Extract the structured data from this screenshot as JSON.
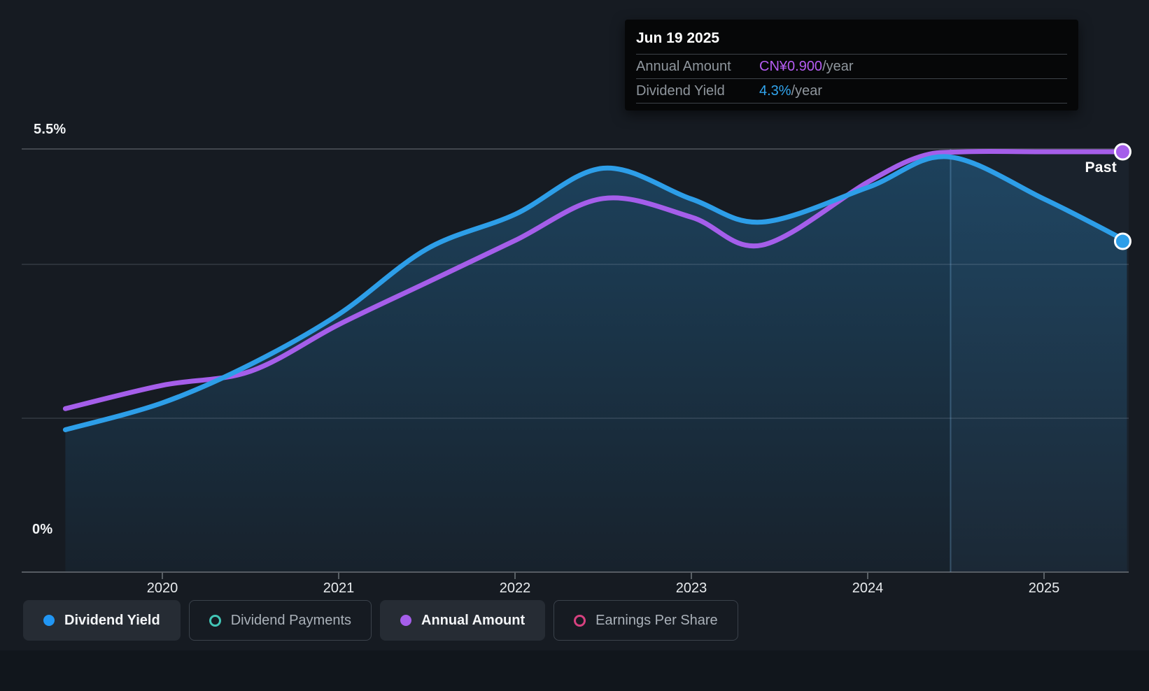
{
  "tooltip": {
    "date": "Jun 19 2025",
    "rows": [
      {
        "label": "Annual Amount",
        "value": "CN¥0.900",
        "suffix": "/year",
        "color": "#b55cf2"
      },
      {
        "label": "Dividend Yield",
        "value": "4.3%",
        "suffix": "/year",
        "color": "#31a5ee"
      }
    ]
  },
  "axes": {
    "y_top": "5.5%",
    "y_bottom": "0%",
    "x_ticks": [
      "2020",
      "2021",
      "2022",
      "2023",
      "2024",
      "2025"
    ]
  },
  "annotations": {
    "past": "Past"
  },
  "legend": [
    {
      "label": "Dividend Yield",
      "marker": "filled",
      "color": "#2196f3",
      "active": true
    },
    {
      "label": "Dividend Payments",
      "marker": "ring",
      "color": "#42c5b6",
      "active": false
    },
    {
      "label": "Annual Amount",
      "marker": "filled",
      "color": "#a55eea",
      "active": true
    },
    {
      "label": "Earnings Per Share",
      "marker": "ring",
      "color": "#d6417f",
      "active": false
    }
  ],
  "chart_data": {
    "type": "line",
    "x_range": [
      2019.45,
      2025.47
    ],
    "x_ticks": [
      2020,
      2021,
      2022,
      2023,
      2024,
      2025
    ],
    "ylim_percent": [
      0,
      5.5
    ],
    "gridline_percent_values": [
      5.5,
      4,
      2,
      0
    ],
    "divider_x": 2024.47,
    "legend_position": "bottom",
    "series": [
      {
        "name": "Dividend Yield",
        "unit": "%",
        "color": "#2d9ee8",
        "area": true,
        "end_label": "4.3%/year",
        "points": [
          [
            2019.45,
            1.85
          ],
          [
            2020,
            2.2
          ],
          [
            2020.5,
            2.7
          ],
          [
            2021,
            3.35
          ],
          [
            2021.5,
            4.2
          ],
          [
            2022,
            4.65
          ],
          [
            2022.5,
            5.25
          ],
          [
            2023,
            4.85
          ],
          [
            2023.4,
            4.55
          ],
          [
            2024,
            5.0
          ],
          [
            2024.45,
            5.4
          ],
          [
            2025,
            4.85
          ],
          [
            2025.47,
            4.3
          ]
        ]
      },
      {
        "name": "Annual Amount",
        "unit": "CN¥/year",
        "color": "#a55eea",
        "area": false,
        "end_label": "CN¥0.900/year",
        "points": [
          [
            2019.45,
            0.35
          ],
          [
            2020,
            0.4
          ],
          [
            2020.5,
            0.43
          ],
          [
            2021,
            0.53
          ],
          [
            2021.5,
            0.62
          ],
          [
            2022,
            0.71
          ],
          [
            2022.5,
            0.8
          ],
          [
            2023,
            0.76
          ],
          [
            2023.4,
            0.7
          ],
          [
            2024,
            0.835
          ],
          [
            2024.3,
            0.89
          ],
          [
            2024.55,
            0.9
          ],
          [
            2025,
            0.9
          ],
          [
            2025.47,
            0.9
          ]
        ]
      }
    ]
  }
}
